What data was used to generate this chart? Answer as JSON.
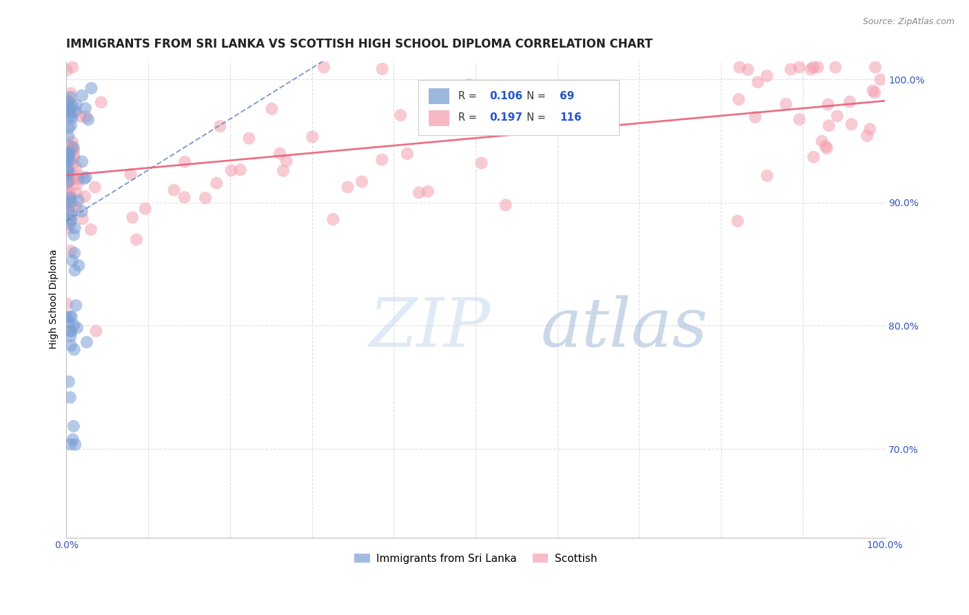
{
  "title": "IMMIGRANTS FROM SRI LANKA VS SCOTTISH HIGH SCHOOL DIPLOMA CORRELATION CHART",
  "source": "Source: ZipAtlas.com",
  "ylabel": "High School Diploma",
  "legend_blue_label": "Immigrants from Sri Lanka",
  "legend_pink_label": "Scottish",
  "R_blue": 0.106,
  "N_blue": 69,
  "R_pink": 0.197,
  "N_pink": 116,
  "blue_color": "#7b9fd4",
  "pink_color": "#f4a0b0",
  "trendline_blue_color": "#6080c0",
  "trendline_pink_color": "#e8607a",
  "xlim": [
    0.0,
    1.0
  ],
  "ylim": [
    0.628,
    1.015
  ],
  "background_color": "#ffffff",
  "grid_color": "#dddddd",
  "right_ytick_vals": [
    0.7,
    0.8,
    0.9,
    1.0
  ],
  "right_ytick_labels": [
    "70.0%",
    "80.0%",
    "90.0%",
    "100.0%"
  ],
  "title_fontsize": 12,
  "axis_label_fontsize": 10,
  "tick_fontsize": 10
}
